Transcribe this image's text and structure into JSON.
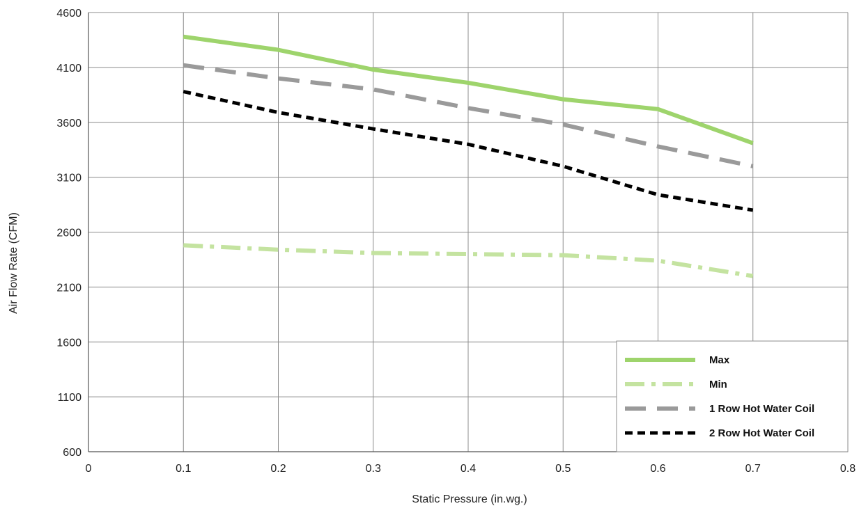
{
  "chart_data": {
    "type": "line",
    "xlabel": "Static Pressure (in.wg.)",
    "ylabel": "Air Flow Rate (CFM)",
    "xlim": [
      0,
      0.8
    ],
    "ylim": [
      600,
      4600
    ],
    "x_ticks": [
      "0",
      "0.1",
      "0.2",
      "0.3",
      "0.4",
      "0.5",
      "0.6",
      "0.7",
      "0.8"
    ],
    "y_ticks": [
      "600",
      "1100",
      "1600",
      "2100",
      "2600",
      "3100",
      "3600",
      "4100",
      "4600"
    ],
    "grid": true,
    "legend_position": "bottom-right",
    "x": [
      0.1,
      0.2,
      0.3,
      0.4,
      0.5,
      0.6,
      0.7
    ],
    "series": [
      {
        "name": "Max",
        "values": [
          4380,
          4260,
          4080,
          3960,
          3810,
          3720,
          3410
        ],
        "color": "#9ed46c",
        "style": "solid"
      },
      {
        "name": "Min",
        "values": [
          2480,
          2440,
          2410,
          2400,
          2390,
          2340,
          2200
        ],
        "color": "#c4e3a0",
        "style": "dash-dot"
      },
      {
        "name": "1 Row Hot Water Coil",
        "values": [
          4120,
          4000,
          3900,
          3730,
          3580,
          3380,
          3200
        ],
        "color": "#9a9a9a",
        "style": "long-dash"
      },
      {
        "name": "2 Row Hot Water Coil",
        "values": [
          3880,
          3690,
          3540,
          3400,
          3200,
          2940,
          2800
        ],
        "color": "#000000",
        "style": "short-dash"
      }
    ]
  }
}
